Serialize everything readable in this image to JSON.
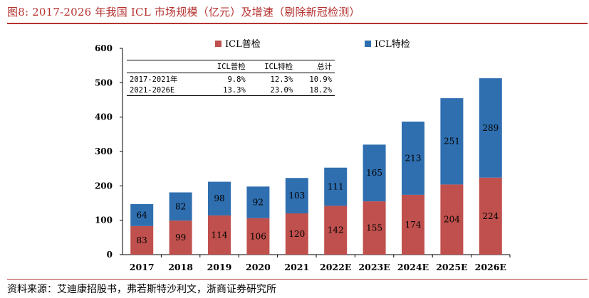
{
  "header": {
    "title": "图8:    2017-2026 年我国 ICL 市场规模（亿元）及增速（剔除新冠检测）"
  },
  "footer": {
    "source": "资料来源：艾迪康招股书，弗若斯特沙利文，浙商证券研究所"
  },
  "colors": {
    "series_1": "#c0504d",
    "series_2": "#2f6fb0",
    "accent": "#b5322f"
  },
  "chart_data": {
    "type": "bar",
    "stacked": true,
    "title": "",
    "xlabel": "",
    "ylabel": "",
    "ylim": [
      0,
      600
    ],
    "yticks": [
      0,
      100,
      200,
      300,
      400,
      500,
      600
    ],
    "categories": [
      "2017",
      "2018",
      "2019",
      "2020",
      "2021",
      "2022E",
      "2023E",
      "2024E",
      "2025E",
      "2026E"
    ],
    "series": [
      {
        "name": "ICL普检",
        "values": [
          83,
          99,
          114,
          106,
          120,
          142,
          155,
          174,
          204,
          224
        ]
      },
      {
        "name": "ICL特检",
        "values": [
          64,
          82,
          98,
          92,
          103,
          111,
          165,
          213,
          251,
          289
        ]
      }
    ],
    "legend_position": "top",
    "growth_table": {
      "headers": [
        "",
        "ICL普检",
        "ICL特检",
        "总计"
      ],
      "rows": [
        [
          "2017-2021年",
          "9.8%",
          "12.3%",
          "10.9%"
        ],
        [
          "2021-2026E",
          "13.3%",
          "23.0%",
          "18.2%"
        ]
      ]
    }
  }
}
